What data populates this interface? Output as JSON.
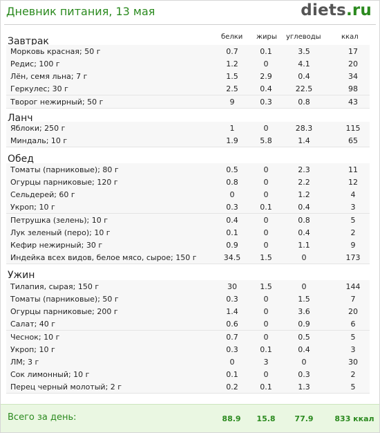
{
  "header": {
    "title": "Дневник питания, 13 мая",
    "brand_main": "diets",
    "brand_tld": ".ru"
  },
  "columns": {
    "protein": "белки",
    "fat": "жиры",
    "carbs": "углеводы",
    "kcal": "ккал"
  },
  "meals": [
    {
      "name": "Завтрак",
      "items": [
        {
          "name": "Морковь красная; 50 г",
          "protein": "0.7",
          "fat": "0.1",
          "carbs": "3.5",
          "kcal": "17"
        },
        {
          "name": "Редис; 100 г",
          "protein": "1.2",
          "fat": "0",
          "carbs": "4.1",
          "kcal": "20"
        },
        {
          "name": "Лён, семя льна; 7 г",
          "protein": "1.5",
          "fat": "2.9",
          "carbs": "0.4",
          "kcal": "34"
        },
        {
          "name": "Геркулес; 30 г",
          "protein": "2.5",
          "fat": "0.4",
          "carbs": "22.5",
          "kcal": "98"
        },
        {
          "name": "Творог нежирный; 50 г",
          "protein": "9",
          "fat": "0.3",
          "carbs": "0.8",
          "kcal": "43"
        }
      ]
    },
    {
      "name": "Ланч",
      "items": [
        {
          "name": "Яблоки; 250 г",
          "protein": "1",
          "fat": "0",
          "carbs": "28.3",
          "kcal": "115"
        },
        {
          "name": "Миндаль; 10 г",
          "protein": "1.9",
          "fat": "5.8",
          "carbs": "1.4",
          "kcal": "65"
        }
      ]
    },
    {
      "name": "Обед",
      "items": [
        {
          "name": "Томаты (парниковые); 80 г",
          "protein": "0.5",
          "fat": "0",
          "carbs": "2.3",
          "kcal": "11"
        },
        {
          "name": "Огурцы парниковые; 120 г",
          "protein": "0.8",
          "fat": "0",
          "carbs": "2.2",
          "kcal": "12"
        },
        {
          "name": "Сельдерей; 60 г",
          "protein": "0",
          "fat": "0",
          "carbs": "1.2",
          "kcal": "4"
        },
        {
          "name": "Укроп; 10 г",
          "protein": "0.3",
          "fat": "0.1",
          "carbs": "0.4",
          "kcal": "3"
        },
        {
          "name": "Петрушка (зелень); 10 г",
          "protein": "0.4",
          "fat": "0",
          "carbs": "0.8",
          "kcal": "5"
        },
        {
          "name": "Лук зеленый (перо); 10 г",
          "protein": "0.1",
          "fat": "0",
          "carbs": "0.4",
          "kcal": "2"
        },
        {
          "name": "Кефир нежирный; 30 г",
          "protein": "0.9",
          "fat": "0",
          "carbs": "1.1",
          "kcal": "9"
        },
        {
          "name": "Индейка всех видов, белое мясо, сырое; 150 г",
          "protein": "34.5",
          "fat": "1.5",
          "carbs": "0",
          "kcal": "173"
        }
      ]
    },
    {
      "name": "Ужин",
      "items": [
        {
          "name": "Тилапия, сырая; 150 г",
          "protein": "30",
          "fat": "1.5",
          "carbs": "0",
          "kcal": "144"
        },
        {
          "name": "Томаты (парниковые); 50 г",
          "protein": "0.3",
          "fat": "0",
          "carbs": "1.5",
          "kcal": "7"
        },
        {
          "name": "Огурцы парниковые; 200 г",
          "protein": "1.4",
          "fat": "0",
          "carbs": "3.6",
          "kcal": "20"
        },
        {
          "name": "Салат; 40 г",
          "protein": "0.6",
          "fat": "0",
          "carbs": "0.9",
          "kcal": "6"
        },
        {
          "name": "Чеснок; 10 г",
          "protein": "0.7",
          "fat": "0",
          "carbs": "0.5",
          "kcal": "5"
        },
        {
          "name": "Укроп; 10 г",
          "protein": "0.3",
          "fat": "0.1",
          "carbs": "0.4",
          "kcal": "3"
        },
        {
          "name": "ЛМ; 3 г",
          "protein": "0",
          "fat": "3",
          "carbs": "0",
          "kcal": "30"
        },
        {
          "name": "Сок лимонный; 10 г",
          "protein": "0.1",
          "fat": "0",
          "carbs": "0.3",
          "kcal": "2"
        },
        {
          "name": "Перец черный молотый; 2 г",
          "protein": "0.2",
          "fat": "0.1",
          "carbs": "1.3",
          "kcal": "5"
        }
      ]
    }
  ],
  "totals": {
    "label": "Всего за день:",
    "protein": "88.9",
    "fat": "15.8",
    "carbs": "77.9",
    "kcal": "833 ккал"
  }
}
